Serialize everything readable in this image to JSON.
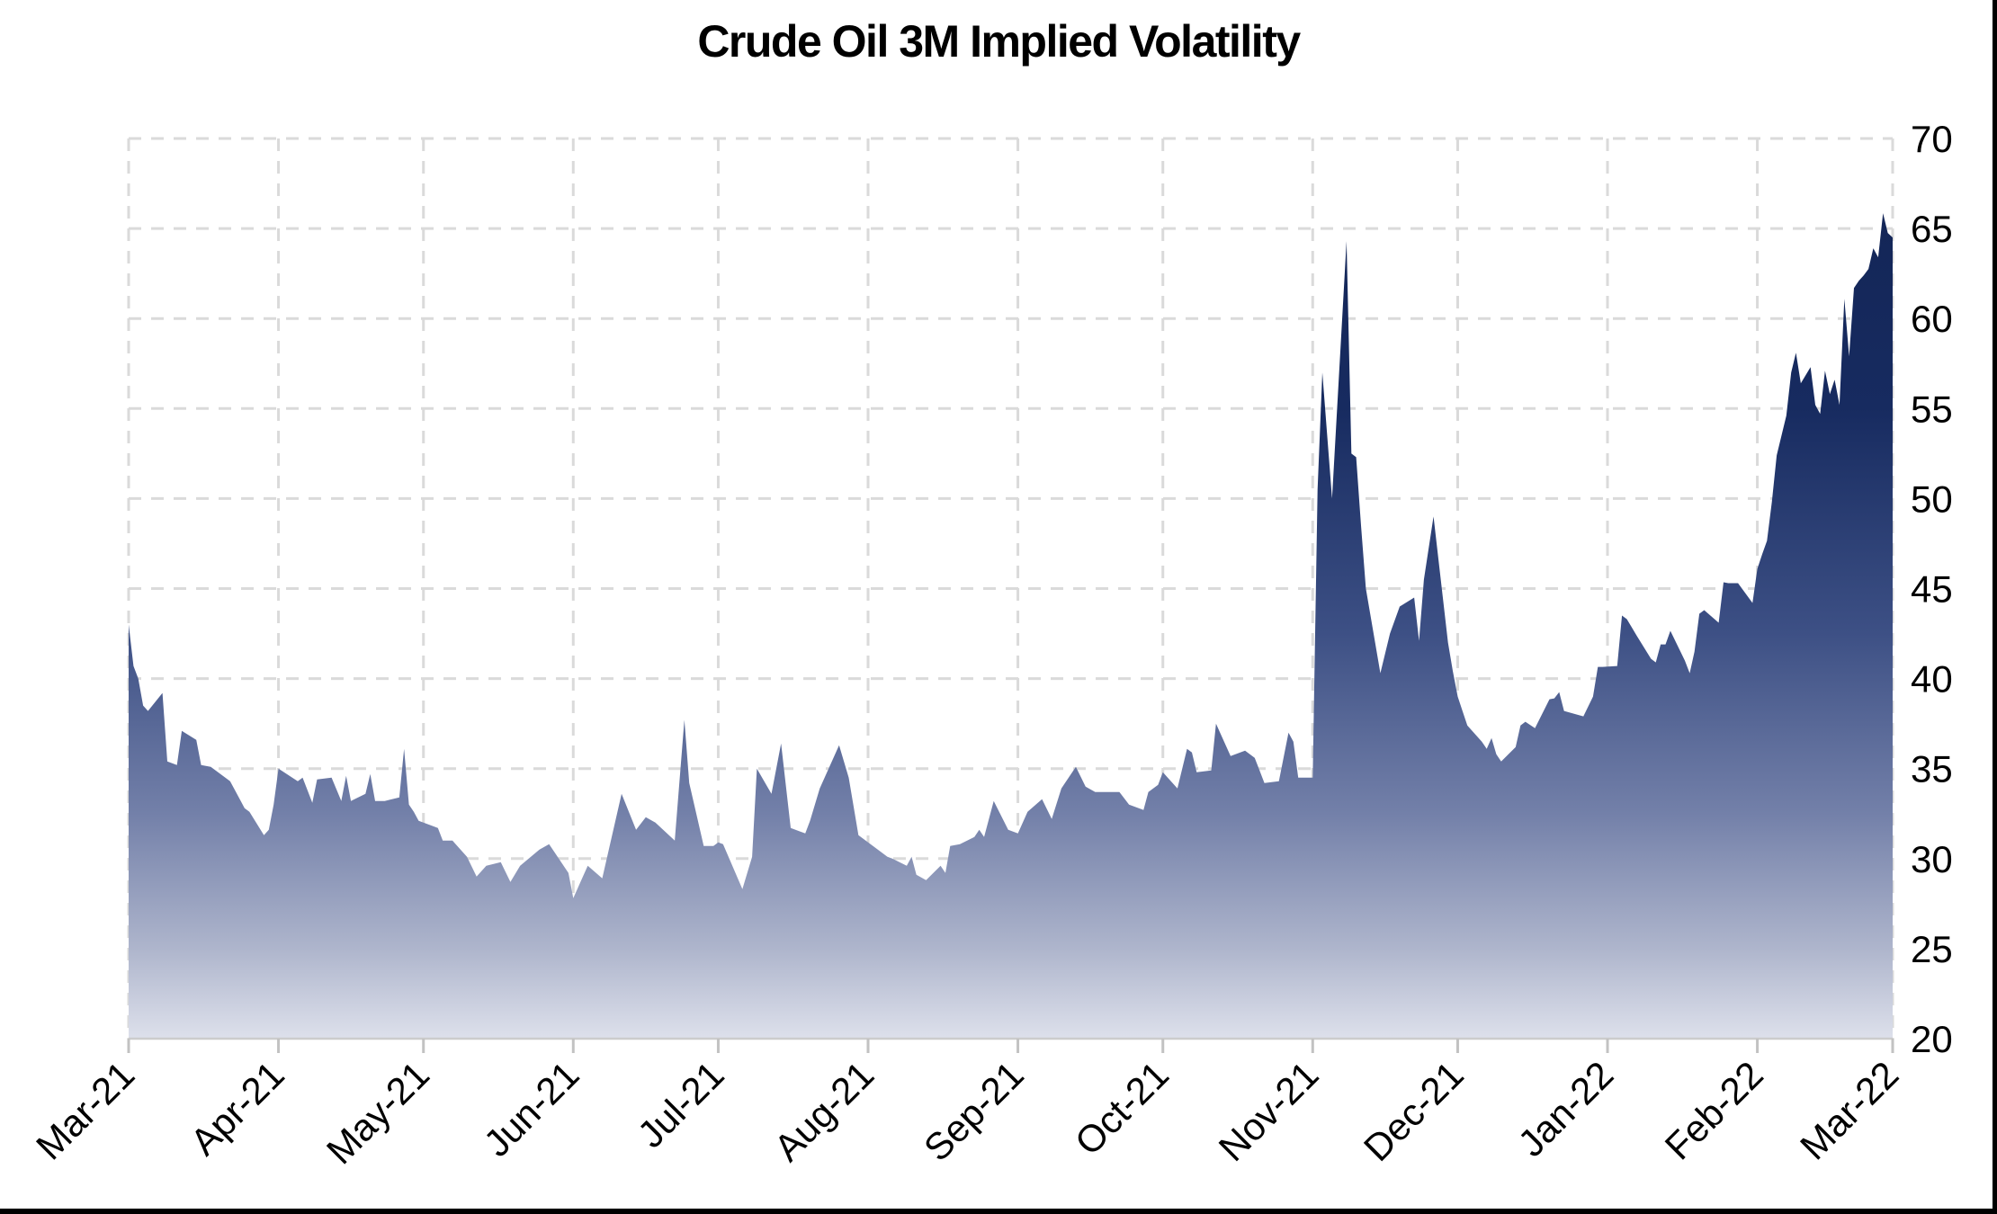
{
  "title": "Crude Oil 3M Implied Volatility",
  "colors": {
    "background": "#ffffff",
    "grid": "#DADADA",
    "axis_line": "#CCCCCC",
    "tick_mark": "#C2C2C2",
    "label_text": "#000000",
    "frame_border": "#000000",
    "area_gradient": [
      "#122454",
      "#172B60",
      "#3D5085",
      "#7380A9",
      "#AEB5CC",
      "#DDE0EB"
    ],
    "area_gradient_offsets": [
      0,
      0.3,
      0.55,
      0.75,
      0.9,
      1
    ]
  },
  "chart_data": {
    "type": "area",
    "title": "Crude Oil 3M Implied Volatility",
    "xlabel": "",
    "ylabel": "",
    "grid": "dashed",
    "legend": "none",
    "y_axis": {
      "side": "right",
      "range": [
        20,
        70
      ],
      "ticks": [
        20,
        25,
        30,
        35,
        40,
        45,
        50,
        55,
        60,
        65,
        70
      ]
    },
    "x_axis": {
      "tick_labels": [
        "Mar-21",
        "Apr-21",
        "May-21",
        "Jun-21",
        "Jul-21",
        "Aug-21",
        "Sep-21",
        "Oct-21",
        "Nov-21",
        "Dec-21",
        "Jan-22",
        "Feb-22",
        "Mar-22"
      ],
      "tick_dates": [
        "2021-03-01",
        "2021-04-01",
        "2021-05-01",
        "2021-06-01",
        "2021-07-01",
        "2021-08-01",
        "2021-09-01",
        "2021-10-01",
        "2021-11-01",
        "2021-12-01",
        "2022-01-01",
        "2022-02-01",
        "2022-03-01"
      ],
      "label_rotation_deg": -45
    },
    "series": [
      {
        "name": "Crude Oil 3M Implied Volatility",
        "points": [
          [
            "2021-03-01",
            43.0
          ],
          [
            "2021-03-02",
            40.7
          ],
          [
            "2021-03-03",
            40.0
          ],
          [
            "2021-03-04",
            38.5
          ],
          [
            "2021-03-05",
            38.2
          ],
          [
            "2021-03-08",
            39.2
          ],
          [
            "2021-03-09",
            35.4
          ],
          [
            "2021-03-11",
            35.2
          ],
          [
            "2021-03-12",
            37.1
          ],
          [
            "2021-03-15",
            36.6
          ],
          [
            "2021-03-16",
            35.2
          ],
          [
            "2021-03-18",
            35.1
          ],
          [
            "2021-03-22",
            34.3
          ],
          [
            "2021-03-23",
            33.8
          ],
          [
            "2021-03-25",
            32.8
          ],
          [
            "2021-03-26",
            32.6
          ],
          [
            "2021-03-29",
            31.3
          ],
          [
            "2021-03-30",
            31.6
          ],
          [
            "2021-03-31",
            33.0
          ],
          [
            "2021-04-01",
            35.0
          ],
          [
            "2021-04-05",
            34.3
          ],
          [
            "2021-04-06",
            34.5
          ],
          [
            "2021-04-08",
            33.1
          ],
          [
            "2021-04-09",
            34.4
          ],
          [
            "2021-04-12",
            34.5
          ],
          [
            "2021-04-14",
            33.2
          ],
          [
            "2021-04-15",
            34.6
          ],
          [
            "2021-04-16",
            33.2
          ],
          [
            "2021-04-19",
            33.6
          ],
          [
            "2021-04-20",
            34.7
          ],
          [
            "2021-04-21",
            33.2
          ],
          [
            "2021-04-23",
            33.2
          ],
          [
            "2021-04-26",
            33.4
          ],
          [
            "2021-04-27",
            36.1
          ],
          [
            "2021-04-28",
            33.0
          ],
          [
            "2021-04-29",
            32.6
          ],
          [
            "2021-04-30",
            32.1
          ],
          [
            "2021-05-03",
            31.8
          ],
          [
            "2021-05-04",
            31.7
          ],
          [
            "2021-05-05",
            31.0
          ],
          [
            "2021-05-07",
            31.0
          ],
          [
            "2021-05-10",
            30.1
          ],
          [
            "2021-05-12",
            29.0
          ],
          [
            "2021-05-14",
            29.6
          ],
          [
            "2021-05-17",
            29.8
          ],
          [
            "2021-05-19",
            28.7
          ],
          [
            "2021-05-21",
            29.6
          ],
          [
            "2021-05-25",
            30.5
          ],
          [
            "2021-05-27",
            30.8
          ],
          [
            "2021-05-28",
            30.4
          ],
          [
            "2021-05-31",
            29.2
          ],
          [
            "2021-06-01",
            27.8
          ],
          [
            "2021-06-03",
            29.0
          ],
          [
            "2021-06-04",
            29.6
          ],
          [
            "2021-06-07",
            28.9
          ],
          [
            "2021-06-11",
            33.6
          ],
          [
            "2021-06-14",
            31.6
          ],
          [
            "2021-06-16",
            32.3
          ],
          [
            "2021-06-18",
            32.0
          ],
          [
            "2021-06-22",
            31.0
          ],
          [
            "2021-06-24",
            37.7
          ],
          [
            "2021-06-25",
            34.2
          ],
          [
            "2021-06-28",
            30.7
          ],
          [
            "2021-06-30",
            30.7
          ],
          [
            "2021-07-01",
            30.9
          ],
          [
            "2021-07-02",
            30.8
          ],
          [
            "2021-07-06",
            28.3
          ],
          [
            "2021-07-08",
            30.1
          ],
          [
            "2021-07-09",
            35.0
          ],
          [
            "2021-07-12",
            33.6
          ],
          [
            "2021-07-14",
            36.4
          ],
          [
            "2021-07-16",
            31.7
          ],
          [
            "2021-07-19",
            31.4
          ],
          [
            "2021-07-20",
            32.1
          ],
          [
            "2021-07-22",
            33.9
          ],
          [
            "2021-07-26",
            36.3
          ],
          [
            "2021-07-28",
            34.5
          ],
          [
            "2021-07-30",
            31.3
          ],
          [
            "2021-08-03",
            30.5
          ],
          [
            "2021-08-05",
            30.1
          ],
          [
            "2021-08-06",
            30.0
          ],
          [
            "2021-08-09",
            29.6
          ],
          [
            "2021-08-10",
            30.1
          ],
          [
            "2021-08-11",
            29.1
          ],
          [
            "2021-08-13",
            28.8
          ],
          [
            "2021-08-16",
            29.6
          ],
          [
            "2021-08-17",
            29.2
          ],
          [
            "2021-08-18",
            30.7
          ],
          [
            "2021-08-20",
            30.8
          ],
          [
            "2021-08-23",
            31.2
          ],
          [
            "2021-08-24",
            31.6
          ],
          [
            "2021-08-25",
            31.2
          ],
          [
            "2021-08-27",
            33.2
          ],
          [
            "2021-08-30",
            31.6
          ],
          [
            "2021-09-01",
            31.4
          ],
          [
            "2021-09-03",
            32.6
          ],
          [
            "2021-09-06",
            33.3
          ],
          [
            "2021-09-08",
            32.2
          ],
          [
            "2021-09-10",
            33.9
          ],
          [
            "2021-09-13",
            35.1
          ],
          [
            "2021-09-15",
            34.0
          ],
          [
            "2021-09-17",
            33.7
          ],
          [
            "2021-09-22",
            33.7
          ],
          [
            "2021-09-24",
            33.0
          ],
          [
            "2021-09-27",
            32.7
          ],
          [
            "2021-09-28",
            33.7
          ],
          [
            "2021-09-30",
            34.1
          ],
          [
            "2021-10-01",
            34.8
          ],
          [
            "2021-10-04",
            33.9
          ],
          [
            "2021-10-06",
            36.1
          ],
          [
            "2021-10-07",
            35.9
          ],
          [
            "2021-10-08",
            34.8
          ],
          [
            "2021-10-11",
            34.9
          ],
          [
            "2021-10-12",
            37.5
          ],
          [
            "2021-10-13",
            36.9
          ],
          [
            "2021-10-15",
            35.7
          ],
          [
            "2021-10-18",
            36.0
          ],
          [
            "2021-10-20",
            35.6
          ],
          [
            "2021-10-22",
            34.2
          ],
          [
            "2021-10-25",
            34.3
          ],
          [
            "2021-10-27",
            37.0
          ],
          [
            "2021-10-28",
            36.5
          ],
          [
            "2021-10-29",
            34.5
          ],
          [
            "2021-11-01",
            34.5
          ],
          [
            "2021-11-02",
            50.5
          ],
          [
            "2021-11-03",
            57.0
          ],
          [
            "2021-11-05",
            50.0
          ],
          [
            "2021-11-08",
            64.3
          ],
          [
            "2021-11-09",
            52.5
          ],
          [
            "2021-11-10",
            52.3
          ],
          [
            "2021-11-11",
            48.5
          ],
          [
            "2021-11-12",
            45.0
          ],
          [
            "2021-11-15",
            40.3
          ],
          [
            "2021-11-17",
            42.5
          ],
          [
            "2021-11-19",
            44.0
          ],
          [
            "2021-11-22",
            44.5
          ],
          [
            "2021-11-23",
            42.1
          ],
          [
            "2021-11-24",
            45.5
          ],
          [
            "2021-11-26",
            49.0
          ],
          [
            "2021-11-29",
            42.0
          ],
          [
            "2021-11-30",
            40.4
          ],
          [
            "2021-12-01",
            39.0
          ],
          [
            "2021-12-02",
            38.2
          ],
          [
            "2021-12-03",
            37.4
          ],
          [
            "2021-12-06",
            36.5
          ],
          [
            "2021-12-07",
            36.1
          ],
          [
            "2021-12-08",
            36.7
          ],
          [
            "2021-12-09",
            35.8
          ],
          [
            "2021-12-10",
            35.4
          ],
          [
            "2021-12-13",
            36.2
          ],
          [
            "2021-12-14",
            37.4
          ],
          [
            "2021-12-15",
            37.6
          ],
          [
            "2021-12-17",
            37.25
          ],
          [
            "2021-12-20",
            38.85
          ],
          [
            "2021-12-21",
            38.9
          ],
          [
            "2021-12-22",
            39.25
          ],
          [
            "2021-12-23",
            38.2
          ],
          [
            "2021-12-27",
            37.9
          ],
          [
            "2021-12-29",
            39.0
          ],
          [
            "2021-12-30",
            40.65
          ],
          [
            "2021-12-31",
            40.65
          ],
          [
            "2022-01-03",
            40.7
          ],
          [
            "2022-01-04",
            43.5
          ],
          [
            "2022-01-05",
            43.3
          ],
          [
            "2022-01-06",
            42.85
          ],
          [
            "2022-01-07",
            42.4
          ],
          [
            "2022-01-10",
            41.1
          ],
          [
            "2022-01-11",
            40.9
          ],
          [
            "2022-01-12",
            41.9
          ],
          [
            "2022-01-13",
            41.9
          ],
          [
            "2022-01-14",
            42.65
          ],
          [
            "2022-01-17",
            41.0
          ],
          [
            "2022-01-18",
            40.3
          ],
          [
            "2022-01-19",
            41.5
          ],
          [
            "2022-01-20",
            43.6
          ],
          [
            "2022-01-21",
            43.8
          ],
          [
            "2022-01-24",
            43.1
          ],
          [
            "2022-01-25",
            45.35
          ],
          [
            "2022-01-26",
            45.3
          ],
          [
            "2022-01-28",
            45.3
          ],
          [
            "2022-01-31",
            44.2
          ],
          [
            "2022-02-01",
            46.1
          ],
          [
            "2022-02-02",
            46.9
          ],
          [
            "2022-02-03",
            47.65
          ],
          [
            "2022-02-04",
            49.8
          ],
          [
            "2022-02-05",
            52.4
          ],
          [
            "2022-02-07",
            54.6
          ],
          [
            "2022-02-08",
            57.0
          ],
          [
            "2022-02-09",
            58.1
          ],
          [
            "2022-02-10",
            56.4
          ],
          [
            "2022-02-12",
            57.3
          ],
          [
            "2022-02-13",
            55.2
          ],
          [
            "2022-02-14",
            54.7
          ],
          [
            "2022-02-15",
            57.1
          ],
          [
            "2022-02-16",
            55.8
          ],
          [
            "2022-02-17",
            56.6
          ],
          [
            "2022-02-18",
            55.2
          ],
          [
            "2022-02-19",
            61.1
          ],
          [
            "2022-02-20",
            57.9
          ],
          [
            "2022-02-21",
            61.7
          ],
          [
            "2022-02-22",
            62.1
          ],
          [
            "2022-02-23",
            62.4
          ],
          [
            "2022-02-24",
            62.75
          ],
          [
            "2022-02-25",
            63.9
          ],
          [
            "2022-02-26",
            63.4
          ],
          [
            "2022-02-27",
            65.85
          ],
          [
            "2022-02-28",
            64.75
          ],
          [
            "2022-03-01",
            64.5
          ]
        ]
      }
    ]
  }
}
